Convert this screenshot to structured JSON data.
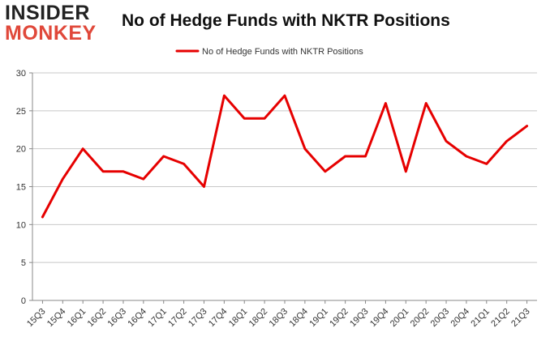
{
  "logo": {
    "line1": "INSIDER",
    "line2": "MONKEY"
  },
  "colors": {
    "series": "#e60000",
    "grid": "#c8c8c8",
    "logo_accent": "#e0483a"
  },
  "chart_data": {
    "type": "line",
    "title": "No of Hedge Funds with NKTR Positions",
    "xlabel": "",
    "ylabel": "",
    "legend": "top-center",
    "grid": true,
    "ylim": [
      0,
      30
    ],
    "yticks": [
      0,
      5,
      10,
      15,
      20,
      25,
      30
    ],
    "categories": [
      "15Q3",
      "15Q4",
      "16Q1",
      "16Q2",
      "16Q3",
      "16Q4",
      "17Q1",
      "17Q2",
      "17Q3",
      "17Q4",
      "18Q1",
      "18Q2",
      "18Q3",
      "18Q4",
      "19Q1",
      "19Q2",
      "19Q3",
      "19Q4",
      "20Q1",
      "20Q2",
      "20Q3",
      "20Q4",
      "21Q1",
      "21Q2",
      "21Q3"
    ],
    "series": [
      {
        "name": "No of Hedge Funds with NKTR Positions",
        "values": [
          11,
          16,
          20,
          17,
          17,
          16,
          19,
          18,
          15,
          27,
          24,
          24,
          27,
          20,
          17,
          19,
          19,
          26,
          17,
          26,
          21,
          19,
          18,
          21,
          23
        ]
      }
    ]
  }
}
